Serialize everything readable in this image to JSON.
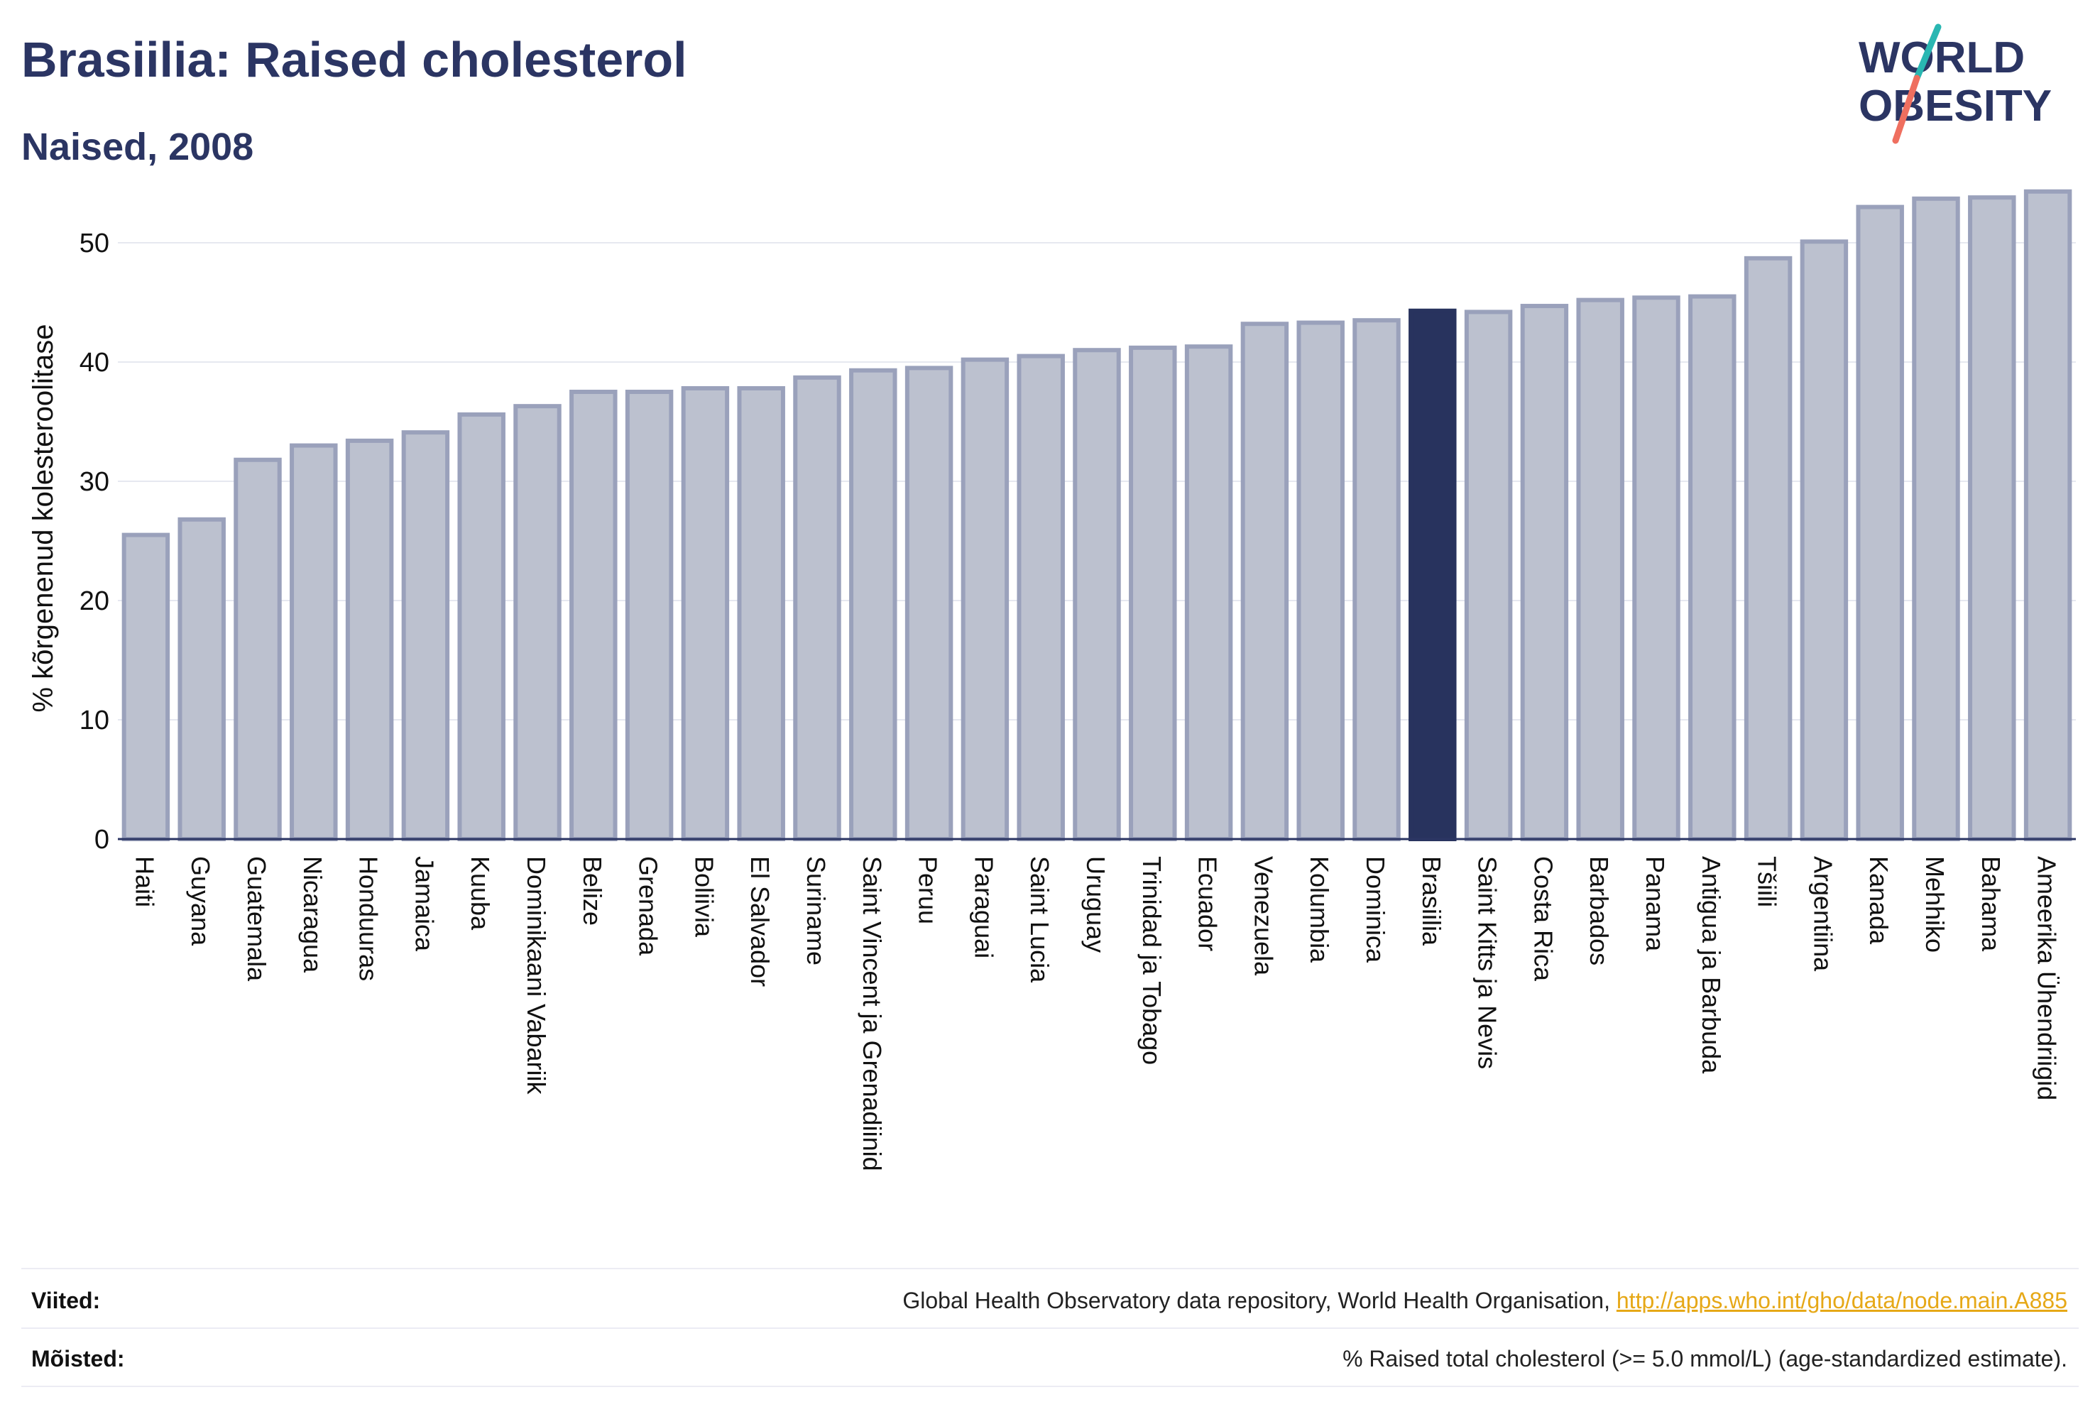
{
  "header": {
    "title": "Brasiilia: Raised cholesterol",
    "subtitle": "Naised, 2008"
  },
  "logo": {
    "line1": "WORLD",
    "line2": "OBESITY",
    "slash_colors": [
      "#2ab7b2",
      "#ef6f5f"
    ]
  },
  "chart_data": {
    "type": "bar",
    "title": "Brasiilia: Raised cholesterol",
    "subtitle": "Naised, 2008",
    "ylabel": "% kõrgenenud kolesteroolitase",
    "xlabel": "",
    "ylim": [
      0,
      55
    ],
    "yticks": [
      0,
      10,
      20,
      30,
      40,
      50
    ],
    "grid": true,
    "highlight": "Brasiilia",
    "colors": {
      "bar": "#bcc1cf",
      "bar_edge": "#9aa1bb",
      "highlight": "#28335e",
      "axis": "#2b3563"
    },
    "categories": [
      "Haiti",
      "Guyana",
      "Guatemala",
      "Nicaragua",
      "Honduuras",
      "Jamaica",
      "Kuuba",
      "Dominikaani Vabariik",
      "Belize",
      "Grenada",
      "Boliivia",
      "El Salvador",
      "Suriname",
      "Saint Vincent ja Grenadiinid",
      "Peruu",
      "Paraguai",
      "Saint Lucia",
      "Uruguay",
      "Trinidad ja Tobago",
      "Ecuador",
      "Venezuela",
      "Kolumbia",
      "Dominica",
      "Brasiilia",
      "Saint Kitts ja Nevis",
      "Costa Rica",
      "Barbados",
      "Panama",
      "Antigua ja Barbuda",
      "Tšiili",
      "Argentiina",
      "Kanada",
      "Mehhiko",
      "Bahama",
      "Ameerika Ühendriigid"
    ],
    "values": [
      25.5,
      26.8,
      31.8,
      33.0,
      33.4,
      34.1,
      35.6,
      36.3,
      37.5,
      37.5,
      37.8,
      37.8,
      38.7,
      39.3,
      39.5,
      40.2,
      40.5,
      41.0,
      41.2,
      41.3,
      43.2,
      43.3,
      43.5,
      44.3,
      44.2,
      44.7,
      45.2,
      45.4,
      45.5,
      48.7,
      50.1,
      53.0,
      53.7,
      53.8,
      54.3
    ]
  },
  "footer": {
    "sources_label": "Viited:",
    "sources_text": "Global Health Observatory data repository, World Health Organisation, ",
    "sources_link": "http://apps.who.int/gho/data/node.main.A885",
    "definitions_label": "Mõisted:",
    "definitions_text": "% Raised total cholesterol (>= 5.0 mmol/L) (age-standardized estimate)."
  }
}
